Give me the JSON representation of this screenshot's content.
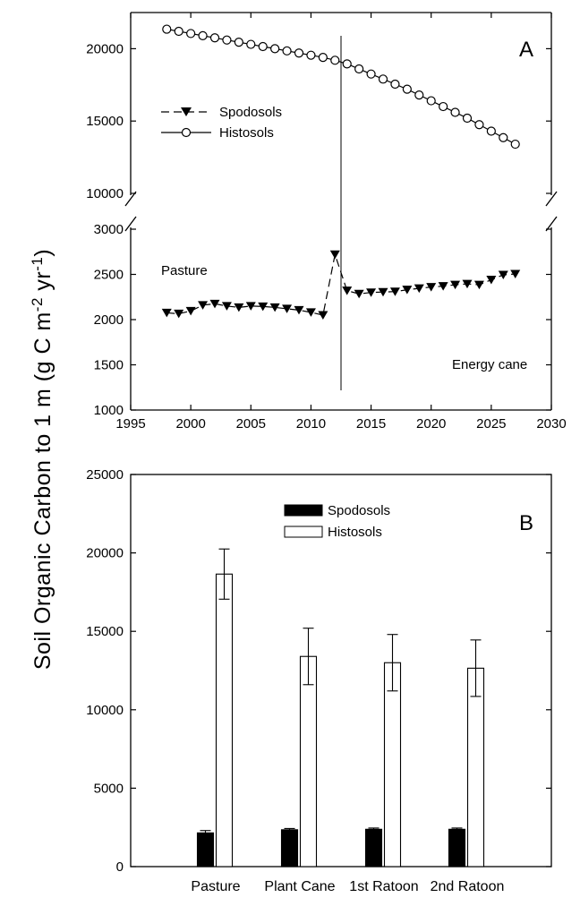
{
  "ylabel": {
    "main": "Soil Organic Carbon to 1 m (g C m",
    "exp1": "-2",
    "mid": " yr",
    "exp2": "-1",
    "end": ")"
  },
  "chart_data": [
    {
      "panel": "A",
      "type": "line",
      "x": [
        1998,
        1999,
        2000,
        2001,
        2002,
        2003,
        2004,
        2005,
        2006,
        2007,
        2008,
        2009,
        2010,
        2011,
        2012,
        2013,
        2014,
        2015,
        2016,
        2017,
        2018,
        2019,
        2020,
        2021,
        2022,
        2023,
        2024,
        2025,
        2026,
        2027
      ],
      "series": [
        {
          "name": "Spodosols",
          "marker": "filled-down-triangle",
          "line": "dashed",
          "values": [
            2075,
            2065,
            2095,
            2160,
            2175,
            2150,
            2135,
            2150,
            2145,
            2135,
            2120,
            2105,
            2080,
            2050,
            2720,
            2320,
            2285,
            2300,
            2305,
            2310,
            2330,
            2345,
            2360,
            2370,
            2385,
            2395,
            2385,
            2440,
            2495,
            2505
          ]
        },
        {
          "name": "Histosols",
          "marker": "open-circle",
          "line": "solid",
          "values": [
            21350,
            21200,
            21050,
            20900,
            20750,
            20600,
            20450,
            20300,
            20150,
            20000,
            19850,
            19700,
            19550,
            19400,
            19200,
            18950,
            18600,
            18250,
            17900,
            17550,
            17200,
            16800,
            16400,
            16000,
            15600,
            15200,
            14750,
            14300,
            13850,
            13400
          ]
        }
      ],
      "xlim": [
        1995,
        2030
      ],
      "xticks": [
        "1995",
        "2000",
        "2005",
        "2010",
        "2015",
        "2020",
        "2025",
        "2030"
      ],
      "y_upper_ticks": [
        "20000",
        "15000",
        "10000"
      ],
      "y_lower_ticks": [
        "3000",
        "2500",
        "2000",
        "1500",
        "1000"
      ],
      "ylim_upper": [
        10000,
        22500
      ],
      "ylim_lower": [
        1000,
        3000
      ],
      "axis_break": true,
      "vline_x": 2012.5,
      "annotations": {
        "left": "Pasture",
        "right": "Energy cane"
      },
      "legend_position": "upper-left"
    },
    {
      "panel": "B",
      "type": "bar",
      "categories": [
        "Pasture",
        "Plant Cane",
        "1st Ratoon",
        "2nd Ratoon"
      ],
      "series": [
        {
          "name": "Spodosols",
          "fill": "#000000",
          "values": [
            2150,
            2350,
            2380,
            2380
          ],
          "errors": [
            150,
            80,
            80,
            80
          ]
        },
        {
          "name": "Histosols",
          "fill": "#ffffff",
          "values": [
            18650,
            13400,
            13000,
            12650
          ],
          "errors": [
            1600,
            1800,
            1800,
            1800
          ]
        }
      ],
      "ylim": [
        0,
        25000
      ],
      "yticks": [
        "0",
        "5000",
        "10000",
        "15000",
        "20000",
        "25000"
      ],
      "legend_position": "upper-center"
    }
  ]
}
